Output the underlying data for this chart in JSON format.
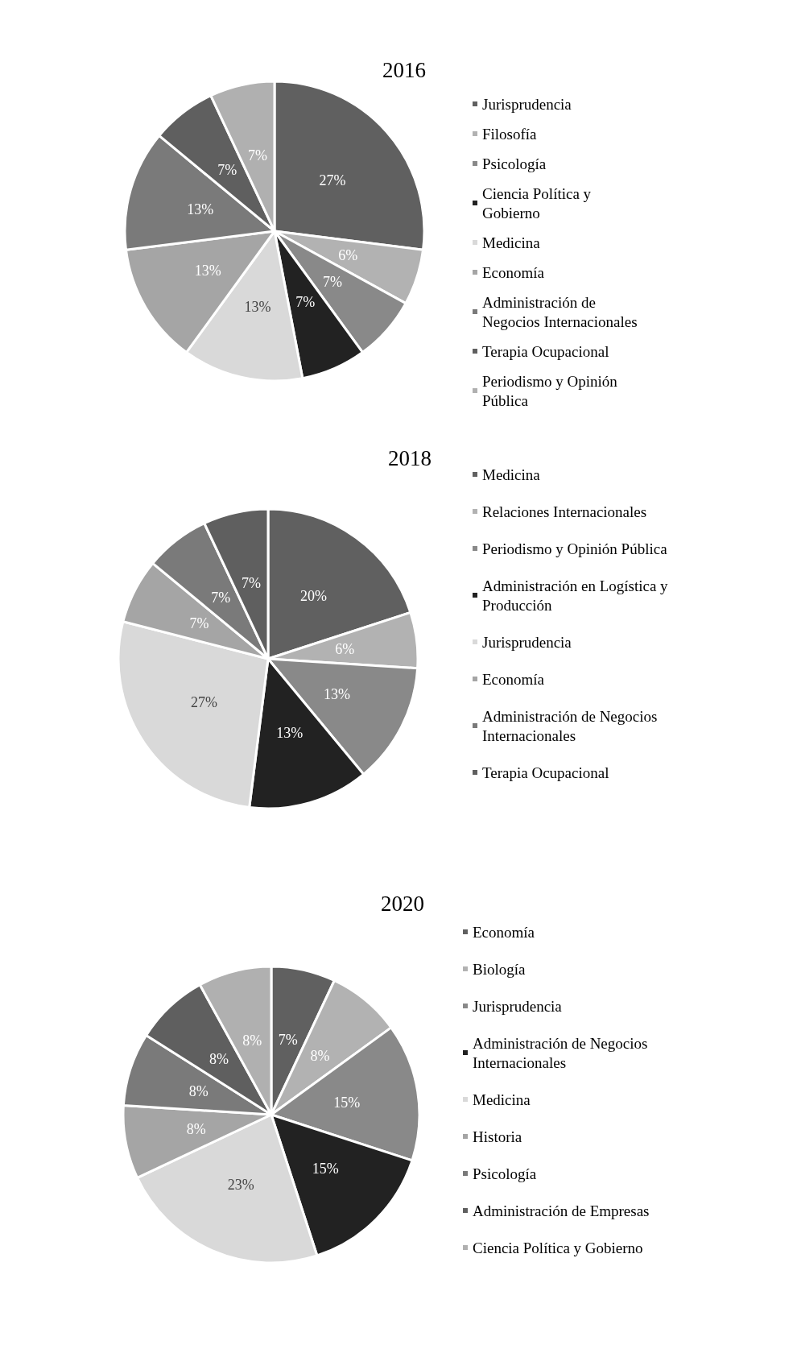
{
  "chart_data": [
    {
      "type": "pie",
      "title": "2016",
      "categories": [
        "Jurisprudencia",
        "Filosofía",
        "Psicología",
        "Ciencia Política y Gobierno",
        "Medicina",
        "Economía",
        "Administración de Negocios Internacionales",
        "Terapia Ocupacional",
        "Periodismo y Opinión Pública"
      ],
      "values": [
        27,
        6,
        7,
        7,
        13,
        13,
        13,
        7,
        7
      ],
      "value_labels": [
        "27%",
        "6%",
        "7%",
        "7%",
        "13%",
        "13%",
        "13%",
        "7%",
        "7%"
      ],
      "colors": [
        "#606060",
        "#b2b2b2",
        "#898989",
        "#222222",
        "#d9d9d9",
        "#a5a5a5",
        "#7a7a7a",
        "#5f5f5f",
        "#b0b0b0"
      ],
      "legend": "right"
    },
    {
      "type": "pie",
      "title": "2018",
      "categories": [
        "Medicina",
        "Relaciones Internacionales",
        "Periodismo y Opinión Pública",
        "Administración en Logística y Producción",
        "Jurisprudencia",
        "Economía",
        "Administración de Negocios Internacionales",
        "Terapia Ocupacional"
      ],
      "values": [
        20,
        6,
        13,
        13,
        27,
        7,
        7,
        7
      ],
      "value_labels": [
        "20%",
        "6%",
        "13%",
        "13%",
        "27%",
        "7%",
        "7%",
        "7%"
      ],
      "colors": [
        "#606060",
        "#b2b2b2",
        "#898989",
        "#222222",
        "#d9d9d9",
        "#a5a5a5",
        "#7a7a7a",
        "#5f5f5f"
      ],
      "legend": "right"
    },
    {
      "type": "pie",
      "title": "2020",
      "categories": [
        "Economía",
        "Biología",
        "Jurisprudencia",
        "Administración de Negocios Internacionales",
        "Medicina",
        "Historia",
        "Psicología",
        "Administración de Empresas",
        "Ciencia Política y Gobierno"
      ],
      "values": [
        7,
        8,
        15,
        15,
        23,
        8,
        8,
        8,
        8
      ],
      "value_labels": [
        "7%",
        "8%",
        "15%",
        "15%",
        "23%",
        "8%",
        "8%",
        "8%",
        "8%"
      ],
      "colors": [
        "#606060",
        "#b2b2b2",
        "#898989",
        "#222222",
        "#d9d9d9",
        "#a5a5a5",
        "#7a7a7a",
        "#5f5f5f",
        "#b0b0b0"
      ],
      "legend": "right"
    }
  ]
}
